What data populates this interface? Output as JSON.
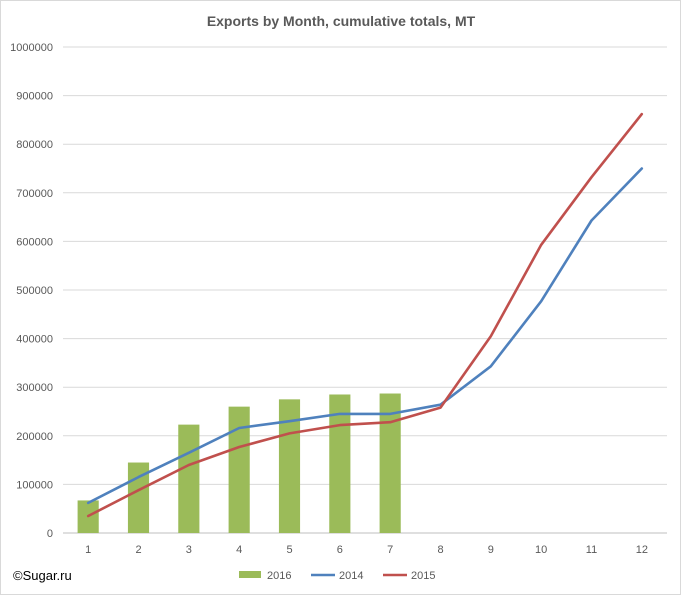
{
  "chart_data": {
    "type": "bar+line",
    "title": "Exports by Month, cumulative totals, MT",
    "categories": [
      "1",
      "2",
      "3",
      "4",
      "5",
      "6",
      "7",
      "8",
      "9",
      "10",
      "11",
      "12"
    ],
    "y_ticks": [
      "0",
      "100000",
      "200000",
      "300000",
      "400000",
      "500000",
      "600000",
      "700000",
      "800000",
      "900000",
      "1000000"
    ],
    "ylim": [
      0,
      1000000
    ],
    "grid": true,
    "legend_position": "bottom",
    "series": [
      {
        "name": "2016",
        "type": "bar",
        "color": "#9bbb59",
        "values": [
          67000,
          145000,
          223000,
          260000,
          275000,
          285000,
          287000,
          null,
          null,
          null,
          null,
          null
        ]
      },
      {
        "name": "2014",
        "type": "line",
        "color": "#4f81bd",
        "values": [
          62000,
          115000,
          165000,
          216000,
          230000,
          245000,
          245000,
          264000,
          343000,
          477000,
          643000,
          750000
        ]
      },
      {
        "name": "2015",
        "type": "line",
        "color": "#c0504d",
        "values": [
          35000,
          88000,
          140000,
          177000,
          205000,
          222000,
          228000,
          258000,
          405000,
          593000,
          732000,
          862000
        ]
      }
    ]
  },
  "footer": {
    "copyright": "©Sugar.ru"
  }
}
